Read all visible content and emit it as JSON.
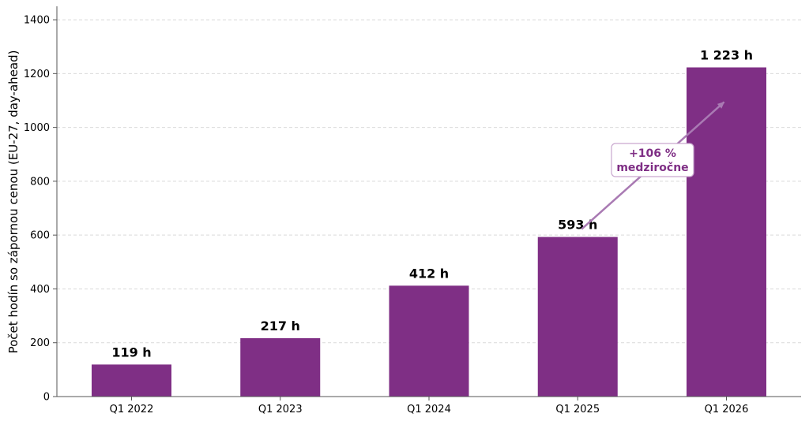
{
  "chart_data": {
    "type": "bar",
    "categories": [
      "Q1 2022",
      "Q1 2023",
      "Q1 2024",
      "Q1 2025",
      "Q1 2026"
    ],
    "values": [
      119,
      217,
      412,
      593,
      1223
    ],
    "data_labels": [
      "119 h",
      "217 h",
      "412 h",
      "593 h",
      "1 223 h"
    ],
    "ylabel": "Počet hodín so zápornou cenou (EU-27, day-ahead)",
    "xlabel": "",
    "ylim": [
      0,
      1450
    ],
    "yticks": [
      0,
      200,
      400,
      600,
      800,
      1000,
      1200,
      1400
    ],
    "grid": "horizontal dashed",
    "bar_color": "#7f2f85",
    "annotation": {
      "line1": "+106 %",
      "line2": "medziročne",
      "color": "#7f2f85",
      "arrow_color": "#a97ab3",
      "from_category": "Q1 2025",
      "to_category": "Q1 2026"
    }
  }
}
